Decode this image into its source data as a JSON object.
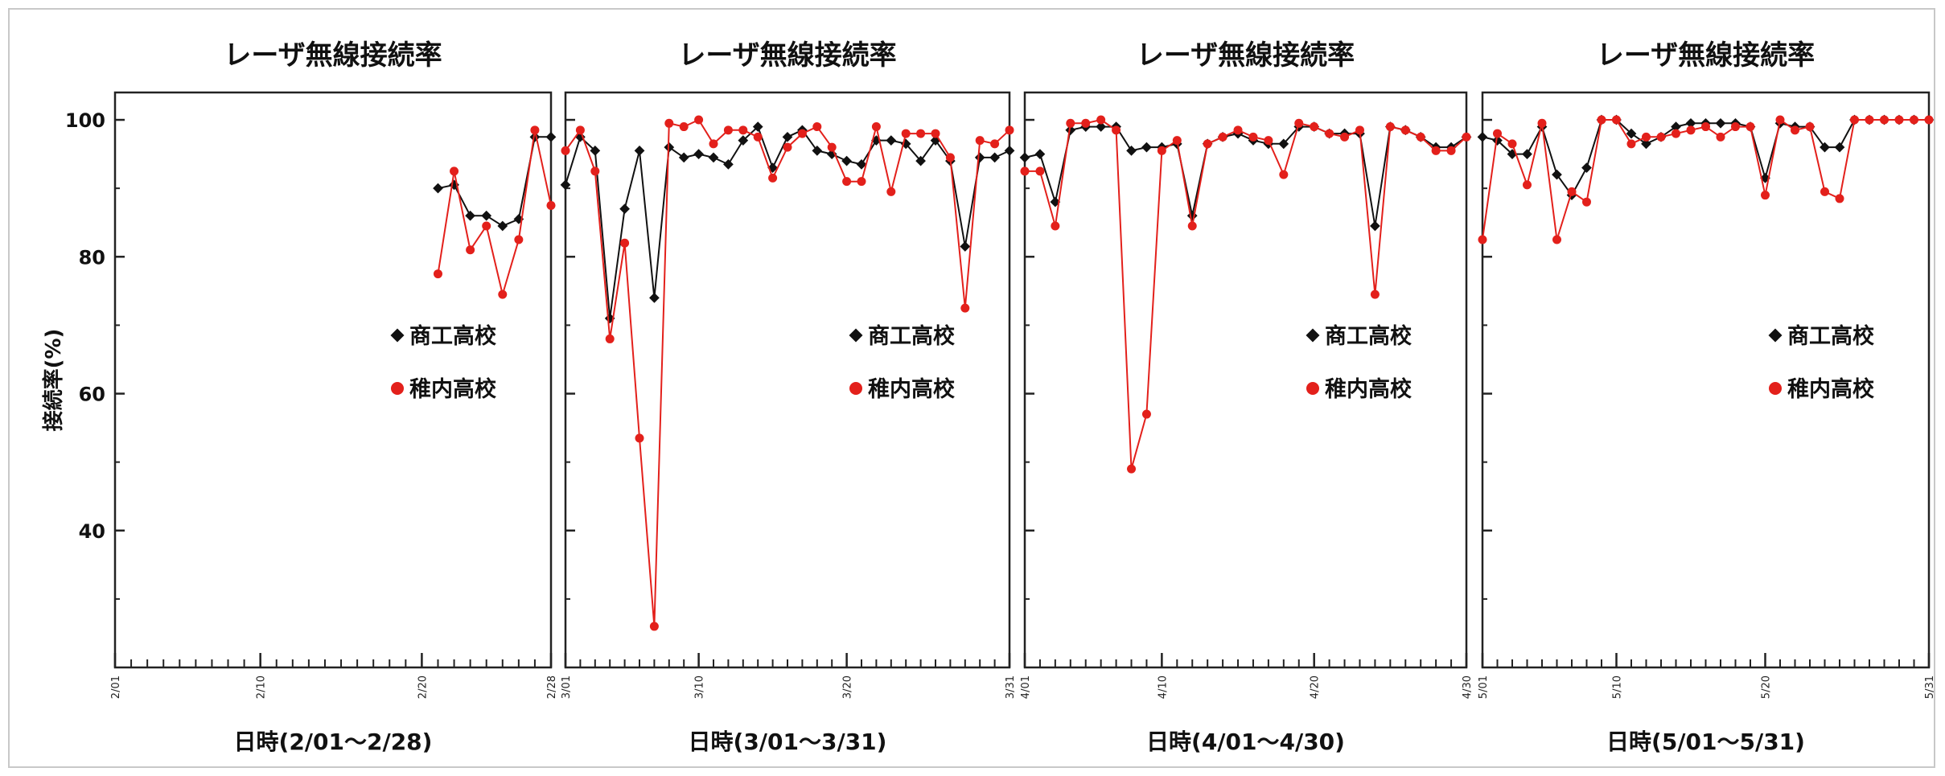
{
  "ylabel": "接続率(%)",
  "y_ticks": [
    "40",
    "60",
    "80",
    "100"
  ],
  "colors": {
    "shoko": "#111111",
    "wakkanai": "#e3201b",
    "axis": "#222222"
  },
  "chart_data": [
    {
      "type": "line",
      "title": "レーザ無線接続率",
      "xlabel": "日時(2/01～2/28)",
      "days": 28,
      "x_ticks": [
        {
          "day": 1,
          "label": "2/01"
        },
        {
          "day": 10,
          "label": "2/10"
        },
        {
          "day": 20,
          "label": "2/20"
        },
        {
          "day": 28,
          "label": "2/28"
        }
      ],
      "ylim": [
        20,
        104
      ],
      "legend": [
        "商工高校",
        "稚内高校"
      ],
      "series": [
        {
          "name": "商工高校",
          "marker": "diamond",
          "points": [
            [
              21,
              90
            ],
            [
              22,
              90.5
            ],
            [
              23,
              86
            ],
            [
              24,
              86
            ],
            [
              25,
              84.5
            ],
            [
              26,
              85.5
            ],
            [
              27,
              97.5
            ],
            [
              28,
              97.5
            ]
          ]
        },
        {
          "name": "稚内高校",
          "marker": "pentagon",
          "points": [
            [
              21,
              77.5
            ],
            [
              22,
              92.5
            ],
            [
              23,
              81
            ],
            [
              24,
              84.5
            ],
            [
              25,
              74.5
            ],
            [
              26,
              82.5
            ],
            [
              27,
              98.5
            ],
            [
              28,
              87.5
            ]
          ]
        }
      ]
    },
    {
      "type": "line",
      "title": "レーザ無線接続率",
      "xlabel": "日時(3/01～3/31)",
      "days": 31,
      "x_ticks": [
        {
          "day": 1,
          "label": "3/01"
        },
        {
          "day": 10,
          "label": "3/10"
        },
        {
          "day": 20,
          "label": "3/20"
        },
        {
          "day": 31,
          "label": "3/31"
        }
      ],
      "ylim": [
        20,
        104
      ],
      "legend": [
        "商工高校",
        "稚内高校"
      ],
      "series": [
        {
          "name": "商工高校",
          "marker": "diamond",
          "points": [
            [
              1,
              90.5
            ],
            [
              2,
              97.5
            ],
            [
              3,
              95.5
            ],
            [
              4,
              71
            ],
            [
              5,
              87
            ],
            [
              6,
              95.5
            ],
            [
              7,
              74
            ],
            [
              8,
              96
            ],
            [
              9,
              94.5
            ],
            [
              10,
              95
            ],
            [
              11,
              94.5
            ],
            [
              12,
              93.5
            ],
            [
              13,
              97
            ],
            [
              14,
              99
            ],
            [
              15,
              93
            ],
            [
              16,
              97.5
            ],
            [
              17,
              98.5
            ],
            [
              18,
              95.5
            ],
            [
              19,
              95
            ],
            [
              20,
              94
            ],
            [
              21,
              93.5
            ],
            [
              22,
              97
            ],
            [
              23,
              97
            ],
            [
              24,
              96.5
            ],
            [
              25,
              94
            ],
            [
              26,
              97
            ],
            [
              27,
              94
            ],
            [
              28,
              81.5
            ],
            [
              29,
              94.5
            ],
            [
              30,
              94.5
            ],
            [
              31,
              95.5
            ]
          ]
        },
        {
          "name": "稚内高校",
          "marker": "pentagon",
          "points": [
            [
              1,
              95.5
            ],
            [
              2,
              98.5
            ],
            [
              3,
              92.5
            ],
            [
              4,
              68
            ],
            [
              5,
              82
            ],
            [
              6,
              53.5
            ],
            [
              7,
              26
            ],
            [
              8,
              99.5
            ],
            [
              9,
              99
            ],
            [
              10,
              100
            ],
            [
              11,
              96.5
            ],
            [
              12,
              98.5
            ],
            [
              13,
              98.5
            ],
            [
              14,
              97.5
            ],
            [
              15,
              91.5
            ],
            [
              16,
              96
            ],
            [
              17,
              98
            ],
            [
              18,
              99
            ],
            [
              19,
              96
            ],
            [
              20,
              91
            ],
            [
              21,
              91
            ],
            [
              22,
              99
            ],
            [
              23,
              89.5
            ],
            [
              24,
              98
            ],
            [
              25,
              98
            ],
            [
              26,
              98
            ],
            [
              27,
              94.5
            ],
            [
              28,
              72.5
            ],
            [
              29,
              97
            ],
            [
              30,
              96.5
            ],
            [
              31,
              98.5
            ]
          ]
        }
      ]
    },
    {
      "type": "line",
      "title": "レーザ無線接続率",
      "xlabel": "日時(4/01～4/30)",
      "days": 30,
      "x_ticks": [
        {
          "day": 1,
          "label": "4/01"
        },
        {
          "day": 10,
          "label": "4/10"
        },
        {
          "day": 20,
          "label": "4/20"
        },
        {
          "day": 30,
          "label": "4/30"
        }
      ],
      "ylim": [
        20,
        104
      ],
      "legend": [
        "商工高校",
        "稚内高校"
      ],
      "series": [
        {
          "name": "商工高校",
          "marker": "diamond",
          "points": [
            [
              1,
              94.5
            ],
            [
              2,
              95
            ],
            [
              3,
              88
            ],
            [
              4,
              98.5
            ],
            [
              5,
              99
            ],
            [
              6,
              99
            ],
            [
              7,
              99
            ],
            [
              8,
              95.5
            ],
            [
              9,
              96
            ],
            [
              10,
              96
            ],
            [
              11,
              96.5
            ],
            [
              12,
              86
            ],
            [
              13,
              96.5
            ],
            [
              14,
              97.5
            ],
            [
              15,
              98
            ],
            [
              16,
              97
            ],
            [
              17,
              96.5
            ],
            [
              18,
              96.5
            ],
            [
              19,
              99
            ],
            [
              20,
              99
            ],
            [
              21,
              98
            ],
            [
              22,
              98
            ],
            [
              23,
              98
            ],
            [
              24,
              84.5
            ],
            [
              25,
              99
            ],
            [
              26,
              98.5
            ],
            [
              27,
              97.5
            ],
            [
              28,
              96
            ],
            [
              29,
              96
            ],
            [
              30,
              97.5
            ]
          ]
        },
        {
          "name": "稚内高校",
          "marker": "pentagon",
          "points": [
            [
              1,
              92.5
            ],
            [
              2,
              92.5
            ],
            [
              3,
              84.5
            ],
            [
              4,
              99.5
            ],
            [
              5,
              99.5
            ],
            [
              6,
              100
            ],
            [
              7,
              98.5
            ],
            [
              8,
              49
            ],
            [
              9,
              57
            ],
            [
              10,
              95.5
            ],
            [
              11,
              97
            ],
            [
              12,
              84.5
            ],
            [
              13,
              96.5
            ],
            [
              14,
              97.5
            ],
            [
              15,
              98.5
            ],
            [
              16,
              97.5
            ],
            [
              17,
              97
            ],
            [
              18,
              92
            ],
            [
              19,
              99.5
            ],
            [
              20,
              99
            ],
            [
              21,
              98
            ],
            [
              22,
              97.5
            ],
            [
              23,
              98.5
            ],
            [
              24,
              74.5
            ],
            [
              25,
              99
            ],
            [
              26,
              98.5
            ],
            [
              27,
              97.5
            ],
            [
              28,
              95.5
            ],
            [
              29,
              95.5
            ],
            [
              30,
              97.5
            ]
          ]
        }
      ]
    },
    {
      "type": "line",
      "title": "レーザ無線接続率",
      "xlabel": "日時(5/01～5/31)",
      "days": 31,
      "x_ticks": [
        {
          "day": 1,
          "label": "5/01"
        },
        {
          "day": 10,
          "label": "5/10"
        },
        {
          "day": 20,
          "label": "5/20"
        },
        {
          "day": 31,
          "label": "5/31"
        }
      ],
      "ylim": [
        20,
        104
      ],
      "legend": [
        "商工高校",
        "稚内高校"
      ],
      "series": [
        {
          "name": "商工高校",
          "marker": "diamond",
          "points": [
            [
              1,
              97.5
            ],
            [
              2,
              97
            ],
            [
              3,
              95
            ],
            [
              4,
              95
            ],
            [
              5,
              99
            ],
            [
              6,
              92
            ],
            [
              7,
              89
            ],
            [
              8,
              93
            ],
            [
              9,
              100
            ],
            [
              10,
              100
            ],
            [
              11,
              98
            ],
            [
              12,
              96.5
            ],
            [
              13,
              97.5
            ],
            [
              14,
              99
            ],
            [
              15,
              99.5
            ],
            [
              16,
              99.5
            ],
            [
              17,
              99.5
            ],
            [
              18,
              99.5
            ],
            [
              19,
              99
            ],
            [
              20,
              91.5
            ],
            [
              21,
              99.5
            ],
            [
              22,
              99
            ],
            [
              23,
              99
            ],
            [
              24,
              96
            ],
            [
              25,
              96
            ],
            [
              26,
              100
            ],
            [
              27,
              100
            ],
            [
              28,
              100
            ],
            [
              29,
              100
            ],
            [
              30,
              100
            ],
            [
              31,
              100
            ]
          ]
        },
        {
          "name": "稚内高校",
          "marker": "pentagon",
          "points": [
            [
              1,
              82.5
            ],
            [
              2,
              98
            ],
            [
              3,
              96.5
            ],
            [
              4,
              90.5
            ],
            [
              5,
              99.5
            ],
            [
              6,
              82.5
            ],
            [
              7,
              89.5
            ],
            [
              8,
              88
            ],
            [
              9,
              100
            ],
            [
              10,
              100
            ],
            [
              11,
              96.5
            ],
            [
              12,
              97.5
            ],
            [
              13,
              97.5
            ],
            [
              14,
              98
            ],
            [
              15,
              98.5
            ],
            [
              16,
              99
            ],
            [
              17,
              97.5
            ],
            [
              18,
              99
            ],
            [
              19,
              99
            ],
            [
              20,
              89
            ],
            [
              21,
              100
            ],
            [
              22,
              98.5
            ],
            [
              23,
              99
            ],
            [
              24,
              89.5
            ],
            [
              25,
              88.5
            ],
            [
              26,
              100
            ],
            [
              27,
              100
            ],
            [
              28,
              100
            ],
            [
              29,
              100
            ],
            [
              30,
              100
            ],
            [
              31,
              100
            ]
          ]
        }
      ]
    }
  ]
}
